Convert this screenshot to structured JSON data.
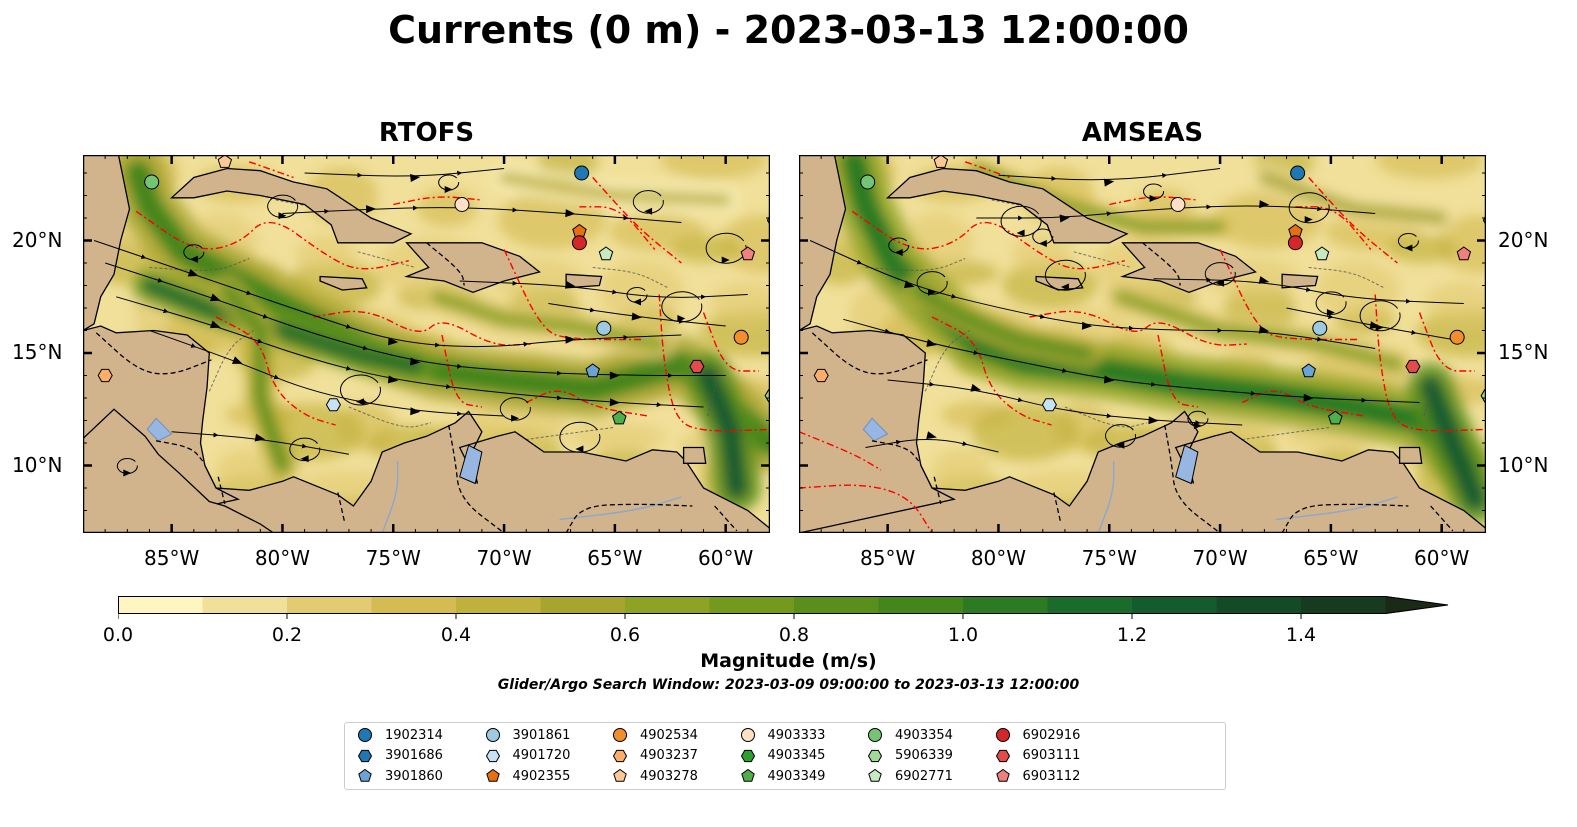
{
  "title": "Currents (0 m) - 2023-03-13 12:00:00",
  "panels": [
    {
      "title": "RTOFS"
    },
    {
      "title": "AMSEAS"
    }
  ],
  "x_tick_labels": [
    "85°W",
    "80°W",
    "75°W",
    "70°W",
    "65°W",
    "60°W"
  ],
  "y_tick_labels": [
    "20°N",
    "15°N",
    "10°N"
  ],
  "colorbar": {
    "label": "Magnitude (m/s)",
    "ticks": [
      "0.0",
      "0.2",
      "0.4",
      "0.6",
      "0.8",
      "1.0",
      "1.2",
      "1.4"
    ],
    "min": 0.0,
    "max": 1.5,
    "step": 0.1,
    "extend": "max",
    "colors": [
      "#fdf6c0",
      "#f1e09a",
      "#e2cb72",
      "#d4bc52",
      "#c0b03c",
      "#a8a42e",
      "#8ea223",
      "#739a1d",
      "#5b8f1c",
      "#44851c",
      "#2c7a22",
      "#1b6c2c",
      "#145c2d",
      "#134b27",
      "#173b20",
      "#1b2a17"
    ]
  },
  "subtitle": "Glider/Argo Search Window: 2023-03-09 09:00:00 to 2023-03-13 12:00:00",
  "colors": {
    "land": "#d2b48c",
    "pacific": "#97b6e1",
    "eez": "#ff0000"
  },
  "legend": [
    {
      "id": "1902314",
      "marker": "circle",
      "color": "#1f77b4"
    },
    {
      "id": "3901686",
      "marker": "hexagon",
      "color": "#1f77b4"
    },
    {
      "id": "3901860",
      "marker": "pentagon",
      "color": "#6ba3d6"
    },
    {
      "id": "3901861",
      "marker": "circle",
      "color": "#9ecae1"
    },
    {
      "id": "4901720",
      "marker": "hexagon",
      "color": "#c6e2f5"
    },
    {
      "id": "4902355",
      "marker": "pentagon",
      "color": "#e6700f"
    },
    {
      "id": "4902534",
      "marker": "circle",
      "color": "#f28e2b"
    },
    {
      "id": "4903237",
      "marker": "hexagon",
      "color": "#fdae6b"
    },
    {
      "id": "4903278",
      "marker": "pentagon",
      "color": "#fdc894"
    },
    {
      "id": "4903333",
      "marker": "circle",
      "color": "#fde0c5"
    },
    {
      "id": "4903345",
      "marker": "hexagon",
      "color": "#2ca02c"
    },
    {
      "id": "4903349",
      "marker": "pentagon",
      "color": "#4daf4a"
    },
    {
      "id": "4903354",
      "marker": "circle",
      "color": "#74c476"
    },
    {
      "id": "5906339",
      "marker": "hexagon",
      "color": "#a1d99b"
    },
    {
      "id": "6902771",
      "marker": "pentagon",
      "color": "#c7e9c0"
    },
    {
      "id": "6902916",
      "marker": "circle",
      "color": "#d62728"
    },
    {
      "id": "6903111",
      "marker": "hexagon",
      "color": "#e34a4a"
    },
    {
      "id": "6903112",
      "marker": "pentagon",
      "color": "#f08080"
    }
  ],
  "floats": [
    {
      "id": "1902314",
      "lon": -66.5,
      "lat": 23.0
    },
    {
      "id": "3901686",
      "lon": -57.8,
      "lat": 20.9
    },
    {
      "id": "3901860",
      "lon": -66.0,
      "lat": 14.2
    },
    {
      "id": "3901861",
      "lon": -65.5,
      "lat": 16.1
    },
    {
      "id": "4901720",
      "lon": -77.7,
      "lat": 12.7
    },
    {
      "id": "4902355",
      "lon": -66.6,
      "lat": 20.4
    },
    {
      "id": "4902534",
      "lon": -59.3,
      "lat": 15.7
    },
    {
      "id": "4903237",
      "lon": -88.0,
      "lat": 14.0
    },
    {
      "id": "4903278",
      "lon": -82.6,
      "lat": 23.5
    },
    {
      "id": "4903333",
      "lon": -71.9,
      "lat": 21.6
    },
    {
      "id": "4903345",
      "lon": -57.9,
      "lat": 13.1
    },
    {
      "id": "4903349",
      "lon": -64.8,
      "lat": 12.1
    },
    {
      "id": "4903354",
      "lon": -85.9,
      "lat": 22.6
    },
    {
      "id": "5906339",
      "lon": -57.9,
      "lat": 13.1
    },
    {
      "id": "6902771",
      "lon": -65.4,
      "lat": 19.4
    },
    {
      "id": "6902916",
      "lon": -66.6,
      "lat": 19.9
    },
    {
      "id": "6903111",
      "lon": -61.3,
      "lat": 14.4
    },
    {
      "id": "6903112",
      "lon": -59.0,
      "lat": 19.4
    }
  ]
}
